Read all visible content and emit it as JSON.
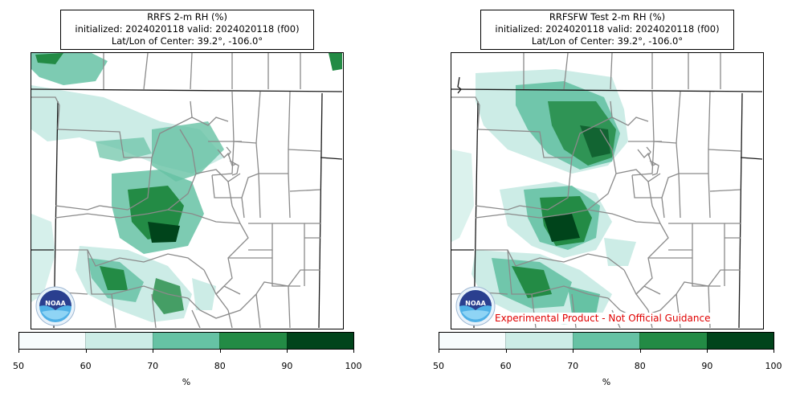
{
  "panels": [
    {
      "title_line1": "RRFS 2-m RH (%)",
      "title_line2": "initialized: 2024020118 valid: 2024020118 (f00)",
      "title_line3": "Lat/Lon of Center: 39.2°, -106.0°",
      "note": ""
    },
    {
      "title_line1": "RRFSFW Test 2-m RH (%)",
      "title_line2": "initialized: 2024020118 valid: 2024020118 (f00)",
      "title_line3": "Lat/Lon of Center: 39.2°, -106.0°",
      "note": "Experimental Product - Not Official Guidance"
    }
  ],
  "colorbar": {
    "ticks": [
      "50",
      "60",
      "70",
      "80",
      "90",
      "100"
    ],
    "unit": "%",
    "colors": [
      "#f7fcfd",
      "#ccece6",
      "#66c2a4",
      "#238b45",
      "#00441b"
    ]
  },
  "logo": {
    "icon": "noaa-logo",
    "text": "NOAA"
  }
}
